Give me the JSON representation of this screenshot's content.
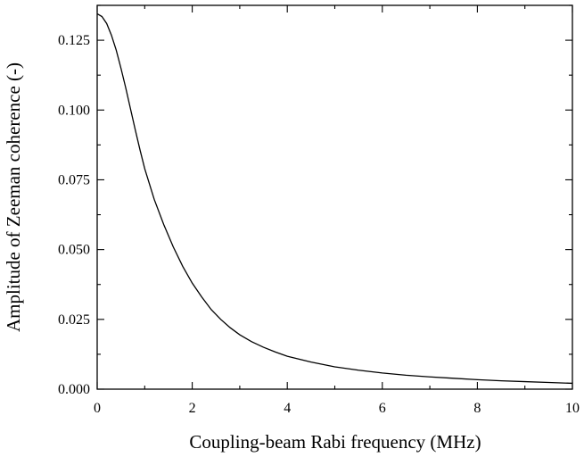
{
  "chart_data": {
    "type": "line",
    "title": "",
    "xlabel": "Coupling-beam Rabi frequency (MHz)",
    "ylabel": "Amplitude of Zeeman coherence (-)",
    "xlim": [
      0,
      10
    ],
    "ylim": [
      0,
      0.1375
    ],
    "xticks": [
      0,
      2,
      4,
      6,
      8,
      10
    ],
    "xtick_labels": [
      "0",
      "2",
      "4",
      "6",
      "8",
      "10"
    ],
    "yticks": [
      0.0,
      0.025,
      0.05,
      0.075,
      0.1,
      0.125
    ],
    "ytick_labels": [
      "0.000",
      "0.025",
      "0.050",
      "0.075",
      "0.100",
      "0.125"
    ],
    "grid": false,
    "series": [
      {
        "x": [
          0,
          0.1,
          0.2,
          0.3,
          0.4,
          0.5,
          0.6,
          0.7,
          0.8,
          0.9,
          1.0,
          1.2,
          1.4,
          1.6,
          1.8,
          2.0,
          2.2,
          2.4,
          2.6,
          2.8,
          3.0,
          3.25,
          3.5,
          3.75,
          4.0,
          4.5,
          5.0,
          5.5,
          6.0,
          6.5,
          7.0,
          7.5,
          8.0,
          8.5,
          9.0,
          9.5,
          10.0
        ],
        "y": [
          0.1345,
          0.1335,
          0.131,
          0.1268,
          0.1215,
          0.115,
          0.108,
          0.1005,
          0.093,
          0.0858,
          0.079,
          0.068,
          0.059,
          0.051,
          0.044,
          0.038,
          0.033,
          0.0285,
          0.025,
          0.022,
          0.0195,
          0.017,
          0.015,
          0.0133,
          0.0118,
          0.0097,
          0.008,
          0.0068,
          0.0058,
          0.005,
          0.0044,
          0.0039,
          0.0034,
          0.003,
          0.0027,
          0.0024,
          0.0021
        ],
        "color": "#000000"
      }
    ]
  }
}
